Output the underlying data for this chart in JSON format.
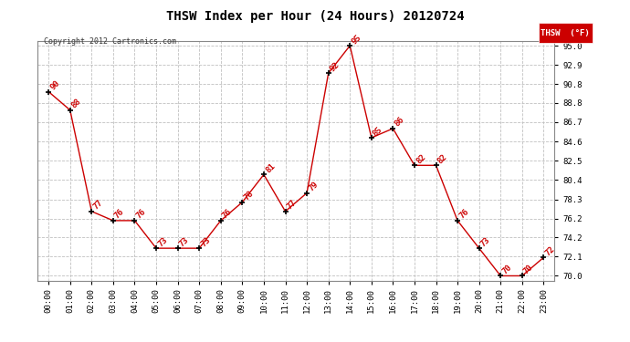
{
  "title": "THSW Index per Hour (24 Hours) 20120724",
  "copyright": "Copyright 2012 Cartronics.com",
  "legend_label": "THSW  (°F)",
  "hours": [
    0,
    1,
    2,
    3,
    4,
    5,
    6,
    7,
    8,
    9,
    10,
    11,
    12,
    13,
    14,
    15,
    16,
    17,
    18,
    19,
    20,
    21,
    22,
    23
  ],
  "values": [
    90,
    88,
    77,
    76,
    76,
    73,
    73,
    73,
    76,
    78,
    81,
    77,
    79,
    92,
    95,
    85,
    86,
    82,
    82,
    76,
    73,
    70,
    70,
    72
  ],
  "xlabels": [
    "00:00",
    "01:00",
    "02:00",
    "03:00",
    "04:00",
    "05:00",
    "06:00",
    "07:00",
    "08:00",
    "09:00",
    "10:00",
    "11:00",
    "12:00",
    "13:00",
    "14:00",
    "15:00",
    "16:00",
    "17:00",
    "18:00",
    "19:00",
    "20:00",
    "21:00",
    "22:00",
    "23:00"
  ],
  "ylim": [
    69.5,
    95.5
  ],
  "yticks": [
    70.0,
    72.1,
    74.2,
    76.2,
    78.3,
    80.4,
    82.5,
    84.6,
    86.7,
    88.8,
    90.8,
    92.9,
    95.0
  ],
  "line_color": "#cc0000",
  "marker_color": "#000000",
  "label_color": "#cc0000",
  "bg_color": "#ffffff",
  "grid_color": "#c0c0c0",
  "title_color": "#000000",
  "copyright_color": "#333333",
  "legend_bg": "#cc0000",
  "legend_text_color": "#ffffff"
}
